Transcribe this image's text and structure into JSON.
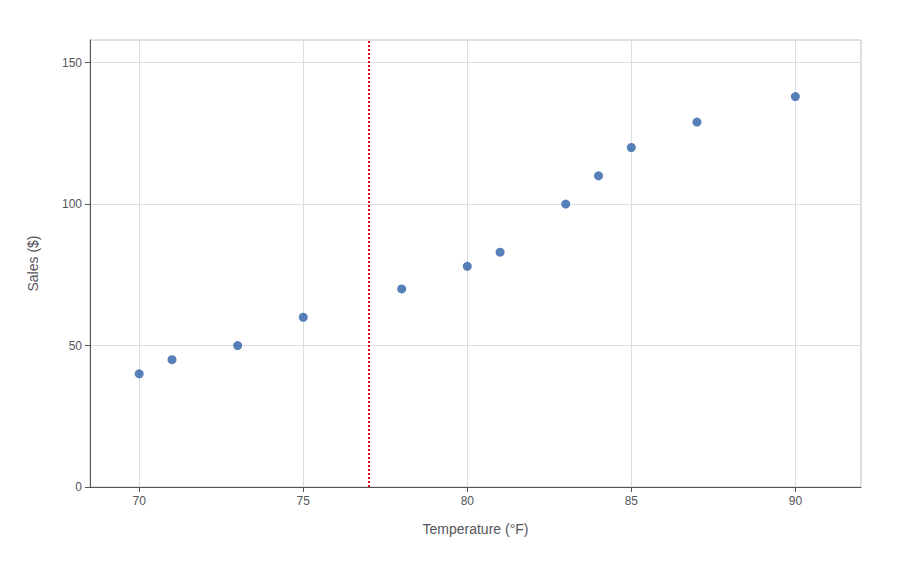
{
  "chart_data": {
    "type": "scatter",
    "x": [
      70,
      71,
      73,
      75,
      78,
      80,
      81,
      83,
      84,
      85,
      87,
      90
    ],
    "values": [
      40,
      45,
      50,
      60,
      70,
      78,
      83,
      100,
      110,
      120,
      129,
      138
    ],
    "color": "#2d5fa6",
    "xlabel": "Temperature (°F)",
    "ylabel": "Sales ($)",
    "xlim": [
      68.5,
      92
    ],
    "ylim": [
      0,
      158
    ],
    "xticks": [
      70,
      75,
      80,
      85,
      90
    ],
    "yticks": [
      0,
      50,
      100,
      150
    ],
    "grid": true,
    "vlines": [
      {
        "x": 77,
        "color": "#e8001c",
        "line_style": "dotted"
      }
    ]
  }
}
